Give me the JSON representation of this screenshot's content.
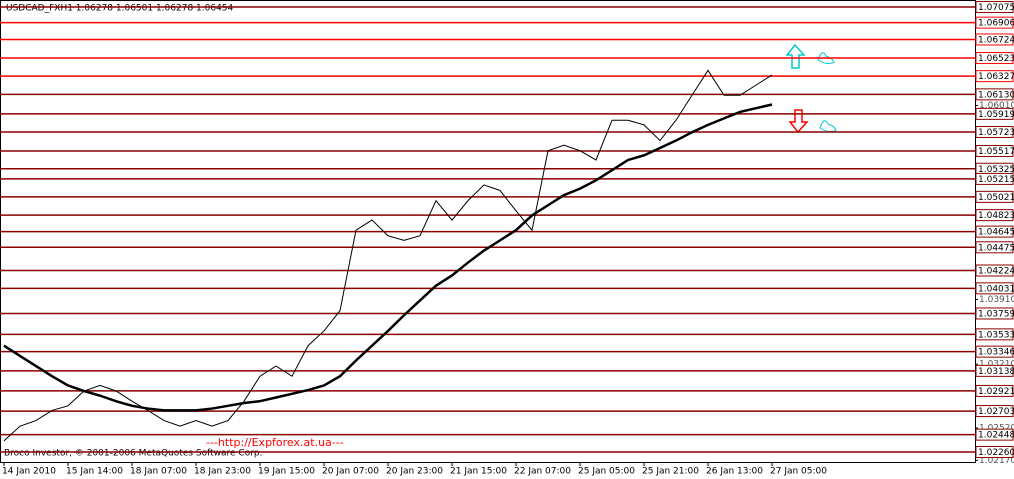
{
  "chart_data": {
    "type": "line",
    "title": "USDCAD_FXH1 1.06278 1.06501 1.06278 1.06454",
    "footer": "Broco Investor, © 2001-2006 MetaQuotes Software Corp.",
    "annotation": "---http://Expforex.at.ua---",
    "categories": [
      "14 Jan 2010",
      null,
      null,
      null,
      "15 Jan 14:00",
      null,
      null,
      null,
      "18 Jan 07:00",
      null,
      null,
      null,
      "18 Jan 23:00",
      null,
      null,
      null,
      "19 Jan 15:00",
      null,
      null,
      null,
      "20 Jan 07:00",
      null,
      null,
      null,
      "20 Jan 23:00",
      null,
      null,
      null,
      "21 Jan 15:00",
      null,
      null,
      null,
      "22 Jan 07:00",
      null,
      null,
      null,
      "25 Jan 05:00",
      null,
      null,
      null,
      "25 Jan 21:00",
      null,
      null,
      null,
      "26 Jan 13:00",
      null,
      null,
      null,
      "27 Jan 05:00"
    ],
    "series": [
      {
        "color": "#000000",
        "line_width": 1,
        "values": [
          1.0238,
          1.0254,
          1.026,
          1.0271,
          1.0276,
          1.0292,
          1.0298,
          1.0292,
          1.0281,
          1.0271,
          1.026,
          1.0254,
          1.026,
          1.0254,
          1.026,
          1.0281,
          1.0308,
          1.0319,
          1.0308,
          1.0341,
          1.0357,
          1.0379,
          1.0466,
          1.0477,
          1.046,
          1.0455,
          1.046,
          1.0498,
          1.0477,
          1.0498,
          1.0515,
          1.0509,
          1.0487,
          1.0466,
          1.0552,
          1.0558,
          1.0552,
          1.0542,
          1.0585,
          1.0585,
          1.058,
          1.0563,
          1.0585,
          1.0612,
          1.0639,
          1.0612,
          1.0612,
          1.0623,
          1.0634
        ]
      },
      {
        "color": "#000000",
        "line_width": 2.5,
        "values": [
          1.0341,
          1.033,
          1.0319,
          1.0308,
          1.0298,
          1.0292,
          1.0287,
          1.0281,
          1.0276,
          1.0273,
          1.0271,
          1.0271,
          1.0271,
          1.0273,
          1.0276,
          1.0279,
          1.0281,
          1.0285,
          1.0289,
          1.0293,
          1.0298,
          1.0308,
          1.0325,
          1.0341,
          1.0357,
          1.0374,
          1.039,
          1.0406,
          1.0417,
          1.0431,
          1.0444,
          1.0455,
          1.0466,
          1.0482,
          1.0493,
          1.0504,
          1.0511,
          1.052,
          1.0531,
          1.0542,
          1.0547,
          1.0555,
          1.0563,
          1.0572,
          1.058,
          1.0587,
          1.0594,
          1.0598,
          1.0602
        ]
      }
    ],
    "ylim": [
      1.02141,
      1.07151
    ],
    "yticks": [
      {
        "value": 1.0601,
        "label": "1.06010"
      },
      {
        "value": 1.0391,
        "label": "1.03910"
      },
      {
        "value": 1.0321,
        "label": "1.03210"
      },
      {
        "value": 1.0252,
        "label": "1.02520"
      },
      {
        "value": 1.0217,
        "label": "1.02170"
      }
    ],
    "levels": [
      {
        "value": 1.07075,
        "color": "#8b0000"
      },
      {
        "value": 1.06906,
        "color": "#ff0000"
      },
      {
        "value": 1.06724,
        "color": "#ff0000"
      },
      {
        "value": 1.06523,
        "color": "#ff0000"
      },
      {
        "value": 1.06327,
        "color": "#ff0000"
      },
      {
        "value": 1.0613,
        "label": "1.06130",
        "color": "#8b0000"
      },
      {
        "value": 1.05919,
        "color": "#8b0000"
      },
      {
        "value": 1.05723,
        "color": "#8b0000"
      },
      {
        "value": 1.05517,
        "color": "#8b0000"
      },
      {
        "value": 1.05325,
        "color": "#8b0000"
      },
      {
        "value": 1.05215,
        "color": "#8b0000"
      },
      {
        "value": 1.05021,
        "color": "#8b0000"
      },
      {
        "value": 1.04823,
        "color": "#8b0000"
      },
      {
        "value": 1.04645,
        "color": "#8b0000"
      },
      {
        "value": 1.04475,
        "color": "#8b0000"
      },
      {
        "value": 1.04224,
        "color": "#8b0000"
      },
      {
        "value": 1.04031,
        "color": "#8b0000"
      },
      {
        "value": 1.03759,
        "color": "#8b0000"
      },
      {
        "value": 1.03533,
        "color": "#8b0000"
      },
      {
        "value": 1.03346,
        "color": "#8b0000"
      },
      {
        "value": 1.03138,
        "color": "#8b0000"
      },
      {
        "value": 1.02921,
        "color": "#8b0000"
      },
      {
        "value": 1.02703,
        "color": "#8b0000"
      },
      {
        "value": 1.02448,
        "color": "#8b0000"
      },
      {
        "value": 1.0226,
        "label": "1.02260",
        "color": "#8b0000"
      }
    ]
  }
}
